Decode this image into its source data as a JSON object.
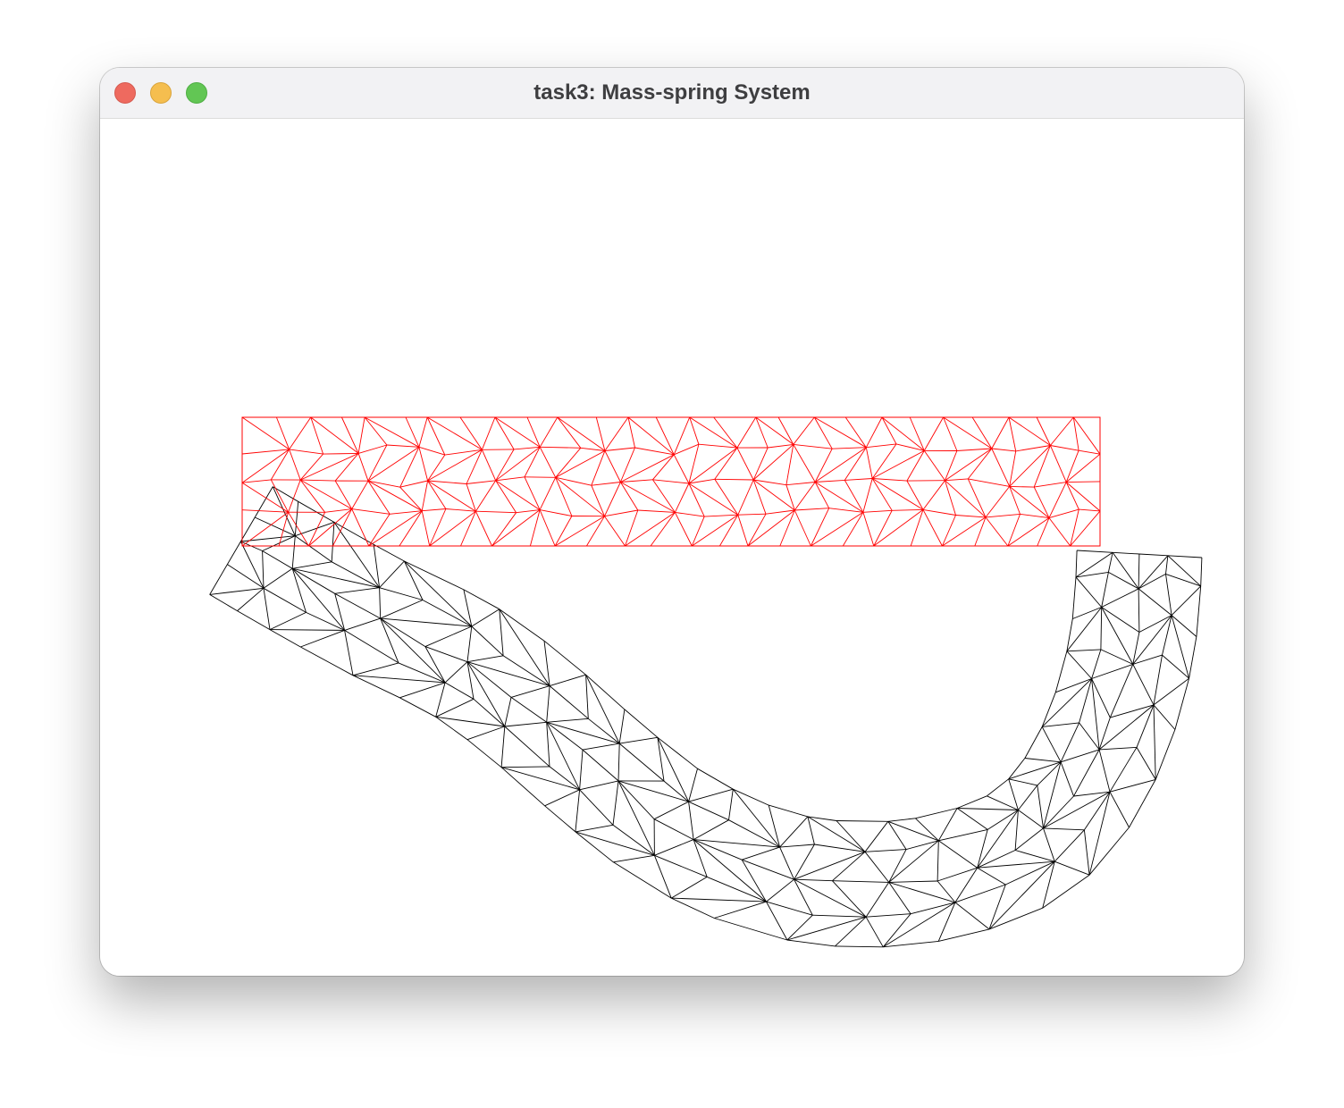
{
  "window": {
    "title": "task3: Mass-spring System",
    "controls": {
      "close": {
        "icon": "close-icon",
        "color": "#ee6a5f"
      },
      "minimize": {
        "icon": "minimize-icon",
        "color": "#f5be4f"
      },
      "zoom": {
        "icon": "zoom-icon",
        "color": "#62c654"
      }
    }
  },
  "scene": {
    "rest_mesh_color": "#ff0000",
    "deformed_mesh_color": "#000000",
    "background": "#ffffff"
  }
}
